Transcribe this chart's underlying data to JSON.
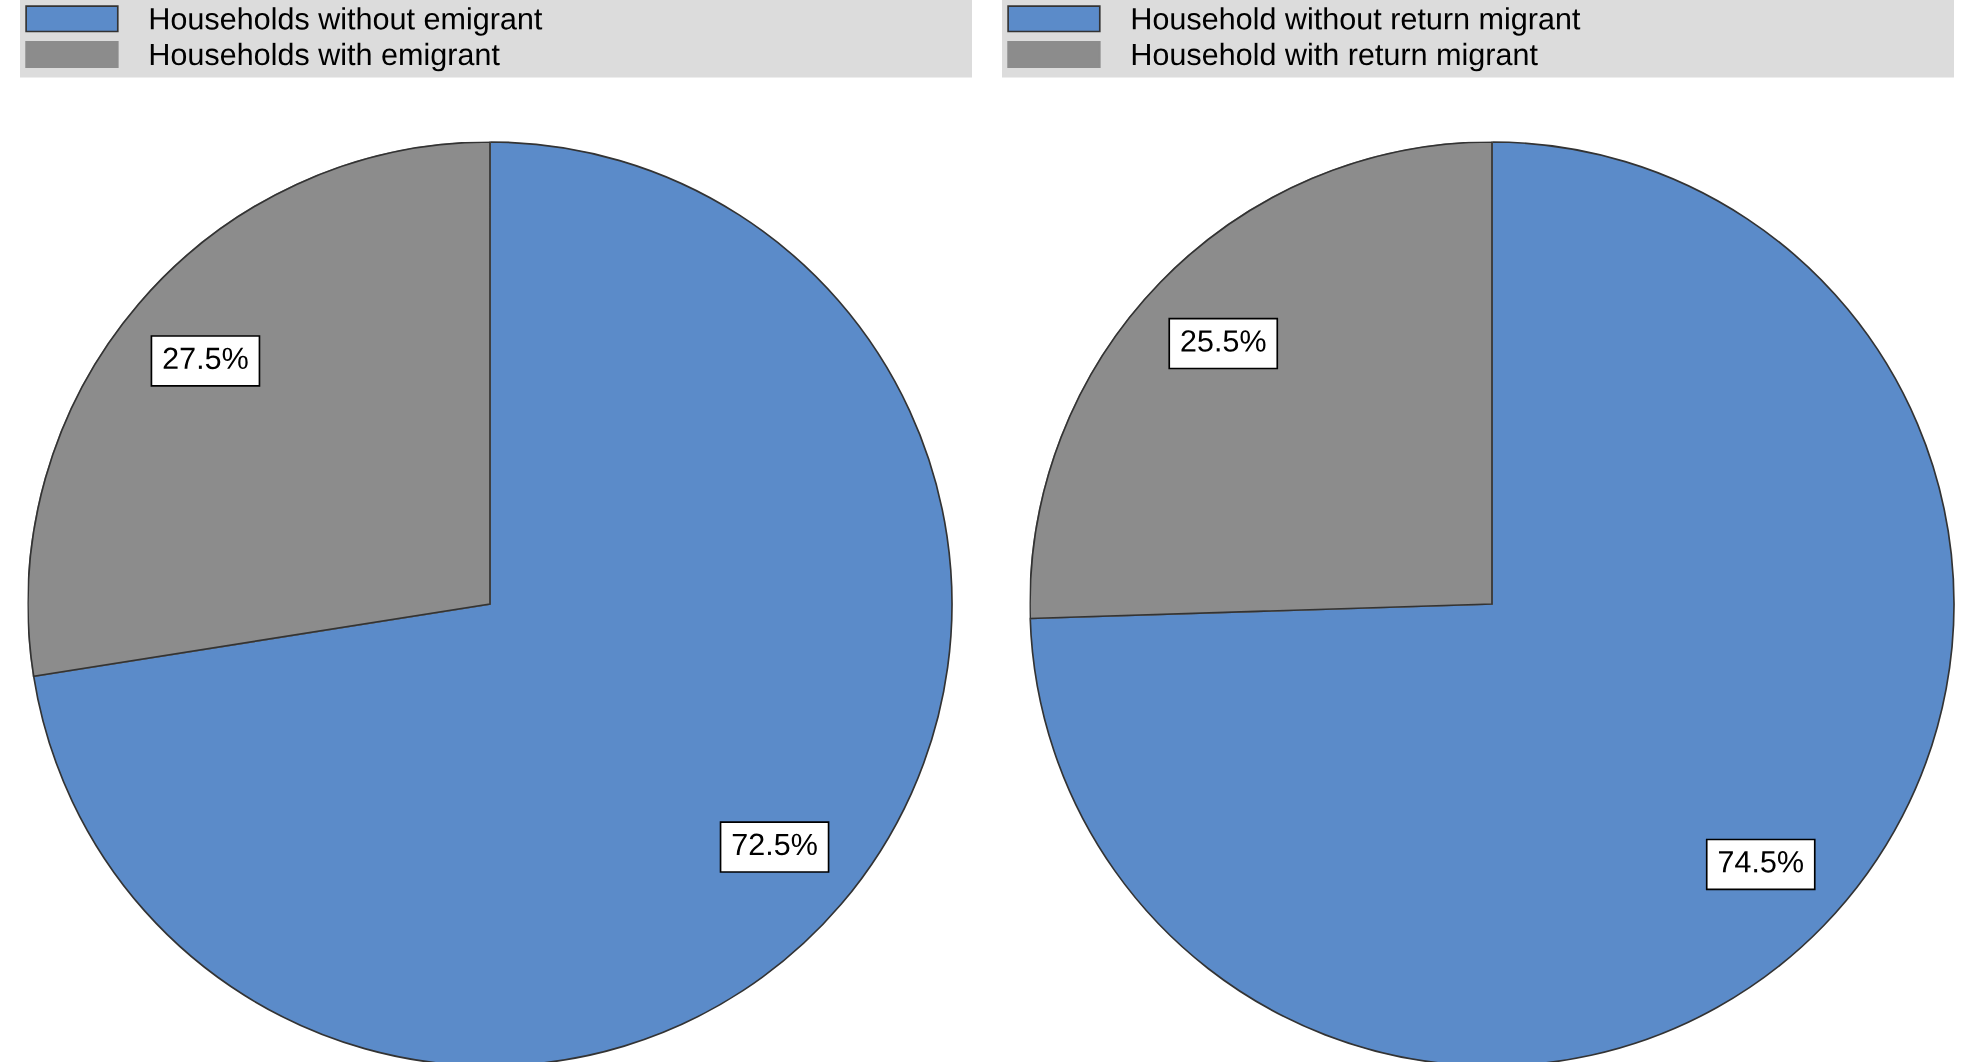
{
  "chart_data": [
    {
      "type": "pie",
      "categories": [
        "Households without emigrant",
        "Households with emigrant"
      ],
      "values": [
        72.5,
        27.5
      ],
      "colors": [
        "#5b8bc9",
        "#8c8c8c"
      ],
      "value_labels": [
        "72.5%",
        "27.5%"
      ],
      "legend": "top"
    },
    {
      "type": "pie",
      "categories": [
        "Household without return migrant",
        "Household with return migrant"
      ],
      "values": [
        74.5,
        25.5
      ],
      "colors": [
        "#5b8bc9",
        "#8c8c8c"
      ],
      "value_labels": [
        "74.5%",
        "25.5%"
      ],
      "legend": "top"
    }
  ]
}
